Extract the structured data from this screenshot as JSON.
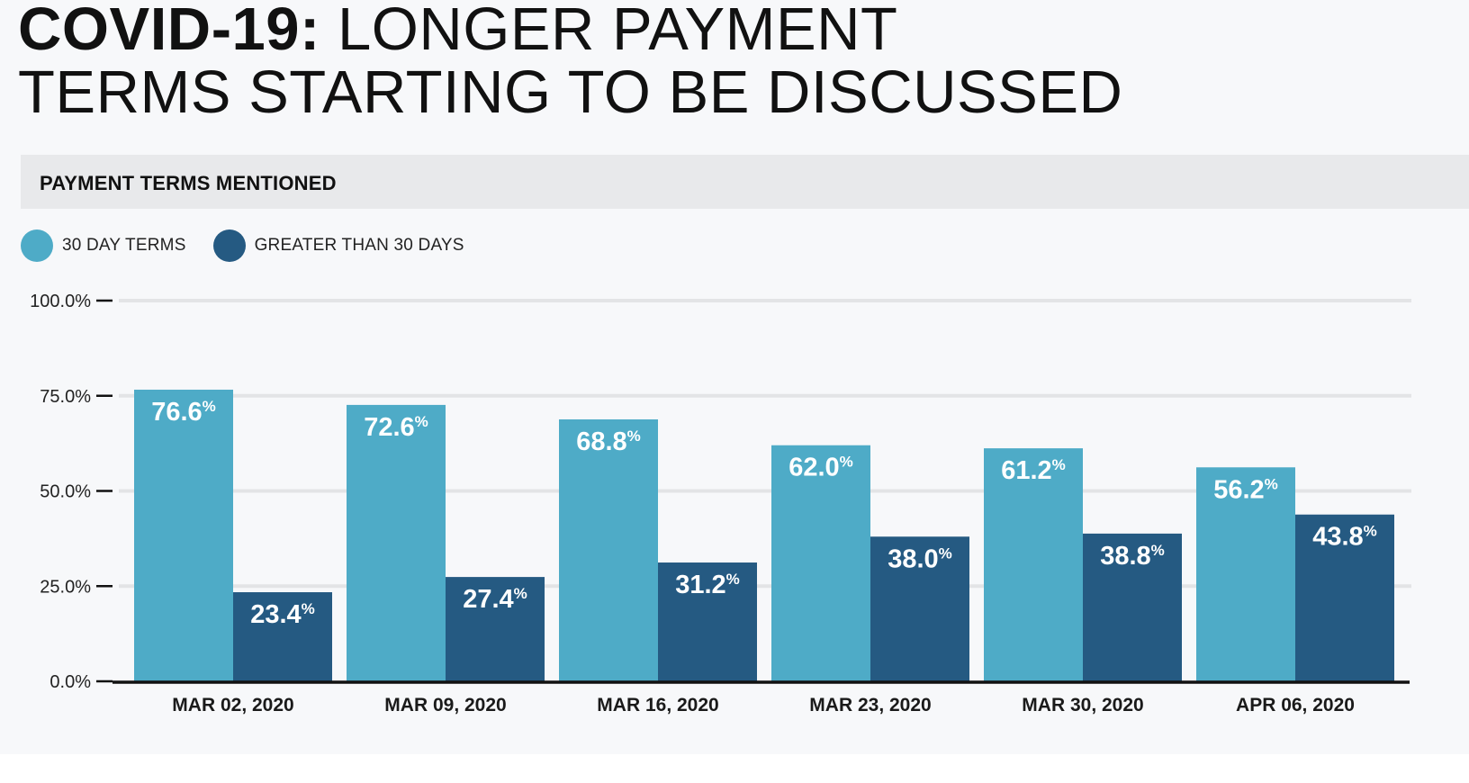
{
  "header": {
    "title_bold": "COVID-19:",
    "title_line1": " LONGER PAYMENT",
    "title_line2": "TERMS STARTING TO BE DISCUSSED"
  },
  "panel": {
    "heading": "PAYMENT TERMS MENTIONED"
  },
  "colors": {
    "series_30": "#4eabc7",
    "series_gt30": "#255a82",
    "axis": "#111111",
    "grid": "#e3e4e6"
  },
  "chart_data": {
    "type": "bar",
    "categories": [
      "MAR 02, 2020",
      "MAR 09, 2020",
      "MAR 16, 2020",
      "MAR 23, 2020",
      "MAR 30, 2020",
      "APR 06, 2020"
    ],
    "series": [
      {
        "name": "30 DAY TERMS",
        "values": [
          76.6,
          72.6,
          68.8,
          62.0,
          61.2,
          56.2
        ]
      },
      {
        "name": "GREATER THAN 30 DAYS",
        "values": [
          23.4,
          27.4,
          31.2,
          38.0,
          38.8,
          43.8
        ]
      }
    ],
    "ylim": [
      0,
      100
    ],
    "yticks": [
      "0.0%",
      "25.0%",
      "50.0%",
      "75.0%",
      "100.0%"
    ],
    "value_labels": [
      [
        "76.6",
        "72.6",
        "68.8",
        "62.0",
        "61.2",
        "56.2"
      ],
      [
        "23.4",
        "27.4",
        "31.2",
        "38.0",
        "38.8",
        "43.8"
      ]
    ],
    "value_suffix": "%",
    "legend_position": "top-left",
    "grid": true,
    "xlabel": "",
    "ylabel": ""
  }
}
